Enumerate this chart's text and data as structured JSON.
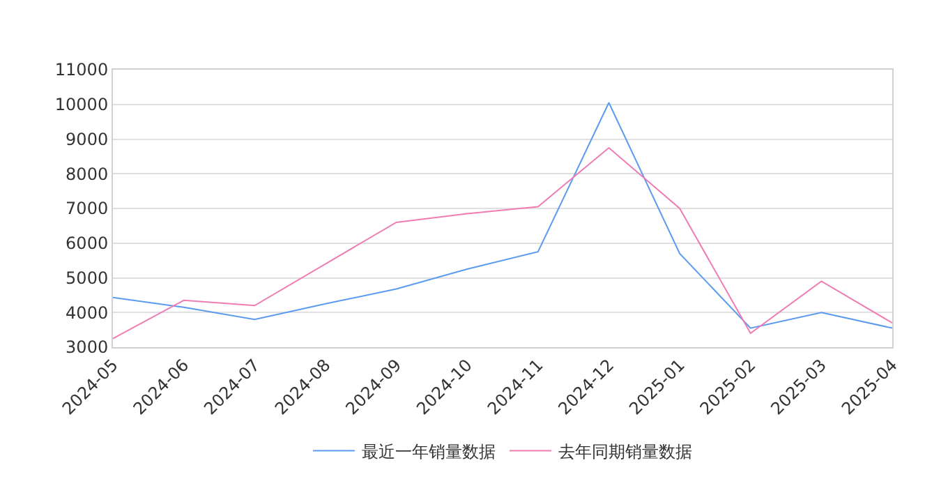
{
  "chart_data": {
    "type": "line",
    "categories": [
      "2024-05",
      "2024-06",
      "2024-07",
      "2024-08",
      "2024-09",
      "2024-10",
      "2024-11",
      "2024-12",
      "2025-01",
      "2025-02",
      "2025-03",
      "2025-04"
    ],
    "series": [
      {
        "name": "最近一年销量数据",
        "color": "#5b9bef",
        "values": [
          4430,
          4150,
          3800,
          4250,
          4680,
          5250,
          5750,
          10050,
          5700,
          3550,
          4000,
          3550
        ]
      },
      {
        "name": "去年同期销量数据",
        "color": "#f07cb4",
        "values": [
          3250,
          4350,
          4200,
          5400,
          6600,
          6850,
          7050,
          8750,
          7000,
          3400,
          4900,
          3700
        ]
      }
    ],
    "ylim": [
      3000,
      11000
    ],
    "yticks": [
      3000,
      4000,
      5000,
      6000,
      7000,
      8000,
      9000,
      10000,
      11000
    ],
    "grid": "y",
    "legend": "bottom",
    "marker": "none",
    "line_style": "solid"
  }
}
